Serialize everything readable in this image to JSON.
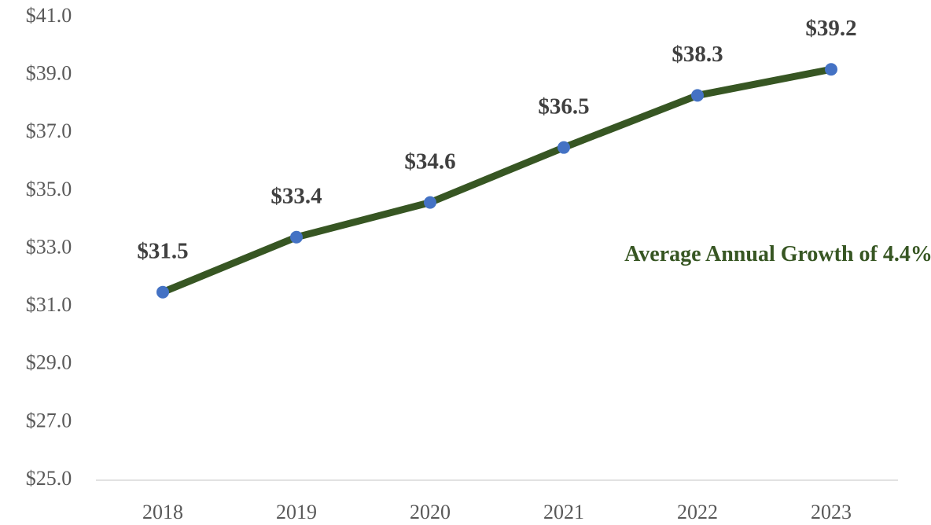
{
  "chart_data": {
    "type": "line",
    "categories": [
      "2018",
      "2019",
      "2020",
      "2021",
      "2022",
      "2023"
    ],
    "values": [
      31.5,
      33.4,
      34.6,
      36.5,
      38.3,
      39.2
    ],
    "value_labels": [
      "$31.5",
      "$33.4",
      "$34.6",
      "$36.5",
      "$38.3",
      "$39.2"
    ],
    "color": "#375623",
    "marker_color": "#4472c4",
    "ylim": [
      25,
      41
    ],
    "yticks": [
      {
        "value": 25,
        "label": "$25.0"
      },
      {
        "value": 27,
        "label": "$27.0"
      },
      {
        "value": 29,
        "label": "$29.0"
      },
      {
        "value": 31,
        "label": "$31.0"
      },
      {
        "value": 33,
        "label": "$33.0"
      },
      {
        "value": 35,
        "label": "$35.0"
      },
      {
        "value": 37,
        "label": "$37.0"
      },
      {
        "value": 39,
        "label": "$39.0"
      },
      {
        "value": 41,
        "label": "$41.0"
      }
    ],
    "grid": false,
    "annotation": "Average Annual Growth of 4.4%",
    "annotation_color": "#375623"
  }
}
